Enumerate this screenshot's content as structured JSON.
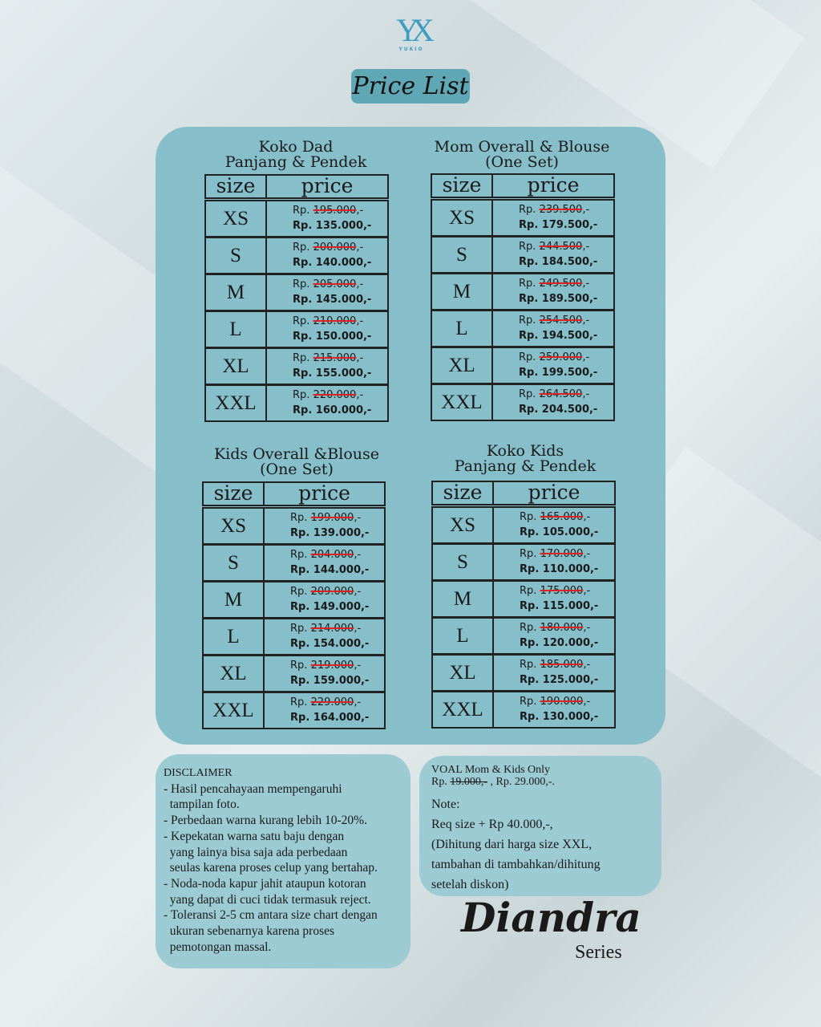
{
  "brand": {
    "logo_text": "YUKIO",
    "title": "Price List"
  },
  "headers": {
    "size": "size",
    "price": "price"
  },
  "tables": [
    {
      "title1": "Koko Dad",
      "title2": "Panjang & Pendek",
      "rows": [
        {
          "size": "XS",
          "old_prefix": "Rp.",
          "old": "195.000",
          ",-": "",
          "new": "Rp. 135.000,-"
        },
        {
          "size": "S",
          "old_prefix": "Rp.",
          "old": "200.000",
          "new": "Rp. 140.000,-"
        },
        {
          "size": "M",
          "old_prefix": "Rp.",
          "old": "205.000",
          "new": "Rp. 145.000,-"
        },
        {
          "size": "L",
          "old_prefix": "Rp.",
          "old": "210.000",
          "new": "Rp. 150.000,-"
        },
        {
          "size": "XL",
          "old_prefix": "Rp.",
          "old": "215.000",
          "new": "Rp. 155.000,-"
        },
        {
          "size": "XXL",
          "old_prefix": "Rp.",
          "old": "220.000",
          "new": "Rp. 160.000,-"
        }
      ]
    },
    {
      "title1": "Mom Overall & Blouse",
      "title2": "(One Set)",
      "rows": [
        {
          "size": "XS",
          "old_prefix": "Rp.",
          "old": "239.500",
          "new": "Rp. 179.500,-"
        },
        {
          "size": "S",
          "old_prefix": "Rp.",
          "old": "244.500",
          "new": "Rp. 184.500,-"
        },
        {
          "size": "M",
          "old_prefix": "Rp.",
          "old": "249.500",
          "new": "Rp. 189.500,-"
        },
        {
          "size": "L",
          "old_prefix": "Rp.",
          "old": "254.500",
          "new": "Rp. 194.500,-"
        },
        {
          "size": "XL",
          "old_prefix": "Rp.",
          "old": "259.000",
          "new": "Rp. 199.500,-"
        },
        {
          "size": "XXL",
          "old_prefix": "Rp.",
          "old": "264.500",
          "new": "Rp. 204.500,-"
        }
      ]
    },
    {
      "title1": "Kids Overall &Blouse",
      "title2": "(One Set)",
      "rows": [
        {
          "size": "XS",
          "old_prefix": "Rp.",
          "old": "199.000",
          "new": "Rp. 139.000,-"
        },
        {
          "size": "S",
          "old_prefix": "Rp.",
          "old": "204.000",
          "new": "Rp. 144.000,-"
        },
        {
          "size": "M",
          "old_prefix": "Rp.",
          "old": "209.000",
          "new": "Rp. 149.000,-"
        },
        {
          "size": "L",
          "old_prefix": "Rp.",
          "old": "214.000",
          "new": "Rp. 154.000,-"
        },
        {
          "size": "XL",
          "old_prefix": "Rp.",
          "old": "219.000",
          "new": "Rp. 159.000,-"
        },
        {
          "size": "XXL",
          "old_prefix": "Rp.",
          "old": "229.000",
          "new": "Rp. 164.000,-"
        }
      ]
    },
    {
      "title1": "Koko Kids",
      "title2": "Panjang & Pendek",
      "rows": [
        {
          "size": "XS",
          "old_prefix": "Rp.",
          "old": "165.000",
          "new": "Rp. 105.000,-"
        },
        {
          "size": "S",
          "old_prefix": "Rp.",
          "old": "170.000",
          "new": "Rp. 110.000,-"
        },
        {
          "size": "M",
          "old_prefix": "Rp.",
          "old": "175.000",
          "new": "Rp. 115.000,-"
        },
        {
          "size": "L",
          "old_prefix": "Rp.",
          "old": "180.000",
          "new": "Rp. 120.000,-"
        },
        {
          "size": "XL",
          "old_prefix": "Rp.",
          "old": "185.000",
          "new": "Rp. 125.000,-"
        },
        {
          "size": "XXL",
          "old_prefix": "Rp.",
          "old": "190.000",
          "new": "Rp. 130.000,-"
        }
      ]
    }
  ],
  "old_suffix": ",-",
  "disclaimer": {
    "title": "DISCLAIMER",
    "lines": [
      "- Hasil pencahayaan mempengaruhi",
      "  tampilan foto.",
      "- Perbedaan warna kurang lebih 10-20%.",
      "- Kepekatan warna satu baju dengan",
      "  yang lainya bisa saja ada perbedaan",
      "  seulas karena proses celup yang bertahap.",
      "- Noda-noda kapur jahit ataupun kotoran",
      "  yang dapat di cuci tidak termasuk reject.",
      "- Toleransi 2-5 cm antara size chart dengan",
      "  ukuran sebenarnya karena proses",
      "  pemotongan massal."
    ]
  },
  "note": {
    "voal_title": "VOAL Mom & Kids Only",
    "voal_prefix": "Rp.",
    "voal_old": "19.000,-",
    "voal_new": ", Rp. 29.000,-.",
    "lines": [
      "Note:",
      "Req size + Rp 40.000,-,",
      "(Dihitung dari harga size XXL,",
      "tambahan di tambahkan/dihitung",
      "setelah diskon)"
    ]
  },
  "series": {
    "name": "Diandra",
    "suffix": "Series"
  },
  "colors": {
    "panel": "#86bfc9",
    "box": "#9ccbd3",
    "title_bg": "#5fa7b5",
    "strike": "#dd2222",
    "logo": "#3d9cc0"
  }
}
